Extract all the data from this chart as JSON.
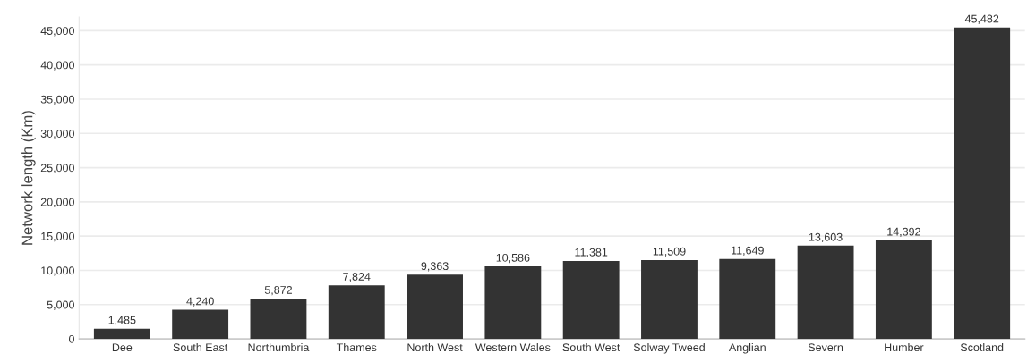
{
  "chart_data": {
    "type": "bar",
    "ylabel": "Network length (Km)",
    "categories": [
      "Dee",
      "South East",
      "Northumbria",
      "Thames",
      "North West",
      "Western Wales",
      "South West",
      "Solway Tweed",
      "Anglian",
      "Severn",
      "Humber",
      "Scotland"
    ],
    "values": [
      1485,
      4240,
      5872,
      7824,
      9363,
      10586,
      11381,
      11509,
      11649,
      13603,
      14392,
      45482
    ],
    "value_labels": [
      "1,485",
      "4,240",
      "5,872",
      "7,824",
      "9,363",
      "10,586",
      "11,381",
      "11,509",
      "11,649",
      "13,603",
      "14,392",
      "45,482"
    ],
    "color": "#333333",
    "ylim": [
      0,
      47000
    ],
    "yticks": [
      {
        "value": 0,
        "label": "0"
      },
      {
        "value": 5000,
        "label": "5,000"
      },
      {
        "value": 10000,
        "label": "10,000"
      },
      {
        "value": 15000,
        "label": "15,000"
      },
      {
        "value": 20000,
        "label": "20,000"
      },
      {
        "value": 25000,
        "label": "25,000"
      },
      {
        "value": 30000,
        "label": "30,000"
      },
      {
        "value": 35000,
        "label": "35,000"
      },
      {
        "value": 40000,
        "label": "40,000"
      },
      {
        "value": 45000,
        "label": "45,000"
      }
    ],
    "grid": "y",
    "legend": false
  }
}
